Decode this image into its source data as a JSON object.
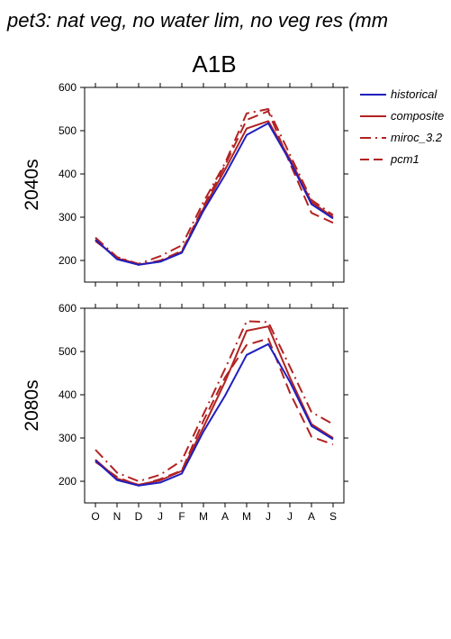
{
  "figure": {
    "title": "pet3: nat veg, no water lim, no veg res (mm",
    "scenario": "A1B"
  },
  "colors": {
    "historical": "#1f1fbf",
    "model": "#b22222"
  },
  "legend": [
    {
      "name": "historical",
      "color": "#1f1fbf",
      "dash": "solid"
    },
    {
      "name": "composite",
      "color": "#b22222",
      "dash": "solid"
    },
    {
      "name": "miroc_3.2",
      "color": "#b22222",
      "dash": "dashdot"
    },
    {
      "name": "pcm1",
      "color": "#b22222",
      "dash": "dash"
    }
  ],
  "chart_data": [
    {
      "type": "line",
      "panel_label": "2040s",
      "categories": [
        "O",
        "N",
        "D",
        "J",
        "F",
        "M",
        "A",
        "M",
        "J",
        "J",
        "A",
        "S"
      ],
      "ylim": [
        150,
        600
      ],
      "yticks": [
        200,
        300,
        400,
        500,
        600
      ],
      "series": [
        {
          "name": "historical",
          "color": "#1f1fbf",
          "dash": "solid",
          "values": [
            248,
            203,
            190,
            197,
            218,
            315,
            398,
            490,
            517,
            430,
            330,
            297
          ]
        },
        {
          "name": "composite",
          "color": "#b22222",
          "dash": "solid",
          "values": [
            248,
            205,
            190,
            198,
            220,
            320,
            410,
            505,
            522,
            435,
            335,
            300
          ]
        },
        {
          "name": "miroc_3.2",
          "color": "#b22222",
          "dash": "dashdot",
          "values": [
            253,
            208,
            192,
            210,
            235,
            335,
            425,
            540,
            550,
            445,
            340,
            305
          ]
        },
        {
          "name": "pcm1",
          "color": "#b22222",
          "dash": "dash",
          "values": [
            245,
            207,
            190,
            200,
            222,
            325,
            420,
            525,
            545,
            425,
            310,
            287
          ]
        }
      ]
    },
    {
      "type": "line",
      "panel_label": "2080s",
      "categories": [
        "O",
        "N",
        "D",
        "J",
        "F",
        "M",
        "A",
        "M",
        "J",
        "J",
        "A",
        "S"
      ],
      "ylim": [
        150,
        600
      ],
      "yticks": [
        200,
        300,
        400,
        500,
        600
      ],
      "series": [
        {
          "name": "historical",
          "color": "#1f1fbf",
          "dash": "solid",
          "values": [
            248,
            203,
            190,
            197,
            218,
            315,
            398,
            492,
            517,
            430,
            328,
            297
          ]
        },
        {
          "name": "composite",
          "color": "#b22222",
          "dash": "solid",
          "values": [
            250,
            206,
            192,
            202,
            224,
            325,
            430,
            548,
            558,
            440,
            332,
            300
          ]
        },
        {
          "name": "miroc_3.2",
          "color": "#b22222",
          "dash": "dashdot",
          "values": [
            273,
            220,
            200,
            215,
            248,
            355,
            460,
            570,
            568,
            465,
            360,
            332
          ]
        },
        {
          "name": "pcm1",
          "color": "#b22222",
          "dash": "dash",
          "values": [
            245,
            210,
            190,
            205,
            225,
            340,
            440,
            515,
            530,
            405,
            303,
            285
          ]
        }
      ]
    }
  ]
}
